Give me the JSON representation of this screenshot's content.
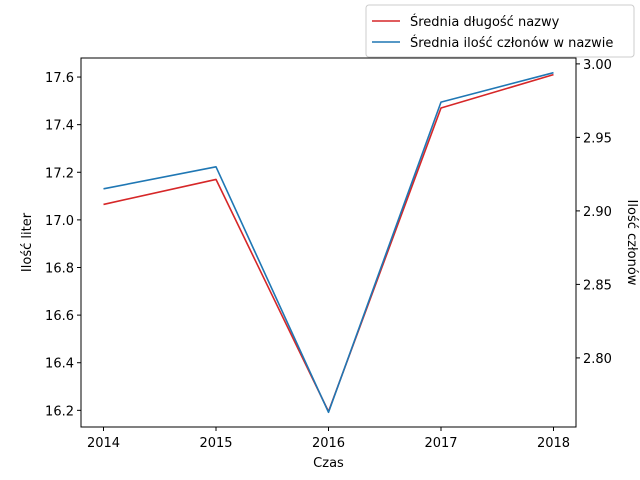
{
  "chart_data": {
    "type": "line",
    "x": [
      2014,
      2015,
      2016,
      2017,
      2018
    ],
    "xlabel": "Czas",
    "xlim": [
      2013.8,
      2018.2
    ],
    "xticks": [
      "2014",
      "2015",
      "2016",
      "2017",
      "2018"
    ],
    "left_axis": {
      "label": "Ilość liter",
      "lim": [
        16.13,
        17.68
      ],
      "ticks": [
        "16.2",
        "16.4",
        "16.6",
        "16.8",
        "17.0",
        "17.2",
        "17.4",
        "17.6"
      ]
    },
    "right_axis": {
      "label": "Ilość członów",
      "lim": [
        2.753,
        3.004
      ],
      "ticks": [
        "2.80",
        "2.85",
        "2.90",
        "2.95",
        "3.00"
      ]
    },
    "series": [
      {
        "name": "Średnia długość nazwy",
        "axis": "left",
        "color": "#d62728",
        "values": [
          17.065,
          17.17,
          16.195,
          17.47,
          17.61
        ]
      },
      {
        "name": "Średnia ilość członów w nazwie",
        "axis": "right",
        "color": "#1f77b4",
        "values": [
          2.915,
          2.93,
          2.763,
          2.974,
          2.994
        ]
      }
    ],
    "legend": "top-right",
    "grid": false
  }
}
